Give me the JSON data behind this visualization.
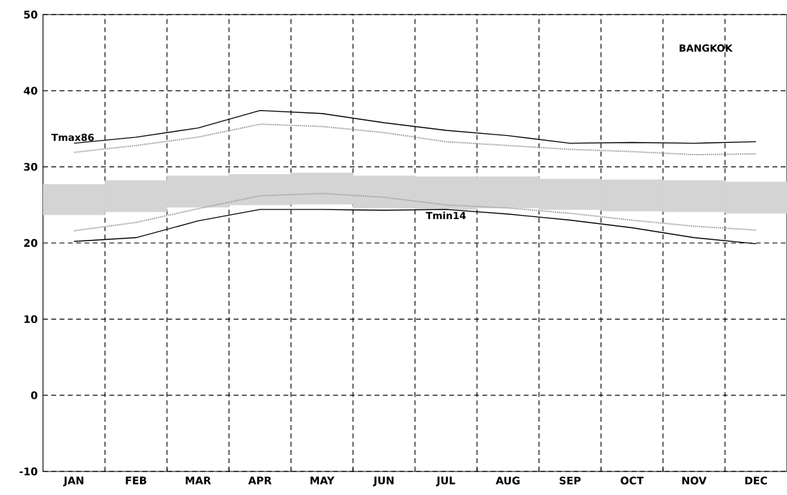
{
  "chart_data": {
    "type": "line",
    "categories": [
      "JAN",
      "FEB",
      "MAR",
      "APR",
      "MAY",
      "JUN",
      "JUL",
      "AUG",
      "SEP",
      "OCT",
      "NOV",
      "DEC"
    ],
    "series": [
      {
        "type": "bar",
        "color": "#d4d4d4",
        "base": [
          23.7,
          24.1,
          24.7,
          25.0,
          25.1,
          24.6,
          24.4,
          24.6,
          24.4,
          24.2,
          24.1,
          23.9
        ],
        "values": [
          4.0,
          4.1,
          4.1,
          4.0,
          4.1,
          4.2,
          4.3,
          4.1,
          4.0,
          4.1,
          4.1,
          4.1
        ]
      },
      {
        "color": "#a8a8a8",
        "line_style": "dotted",
        "values": [
          31.9,
          32.8,
          33.9,
          35.6,
          35.3,
          34.5,
          33.3,
          32.8,
          32.3,
          32.0,
          31.6,
          31.7
        ]
      },
      {
        "color": "#a8a8a8",
        "line_style": "dotted",
        "values": [
          21.6,
          22.7,
          24.5,
          26.2,
          26.5,
          26.0,
          25.0,
          24.6,
          23.9,
          23.0,
          22.2,
          21.7
        ]
      },
      {
        "name": "Tmax86",
        "color": "#000000",
        "line_style": "solid",
        "values": [
          33.1,
          33.9,
          35.1,
          37.4,
          37.0,
          35.8,
          34.8,
          34.1,
          33.1,
          33.2,
          33.1,
          33.3
        ]
      },
      {
        "name": "Tmin14",
        "color": "#000000",
        "line_style": "solid",
        "values": [
          20.2,
          20.7,
          22.9,
          24.4,
          24.4,
          24.3,
          24.4,
          23.8,
          23.0,
          22.0,
          20.7,
          19.9
        ]
      }
    ],
    "annotations": [
      "BANGKOK"
    ],
    "ylim": [
      -10,
      50
    ],
    "yticks": [
      -10,
      0,
      10,
      20,
      30,
      40,
      50
    ],
    "grid": true,
    "legend": false
  }
}
